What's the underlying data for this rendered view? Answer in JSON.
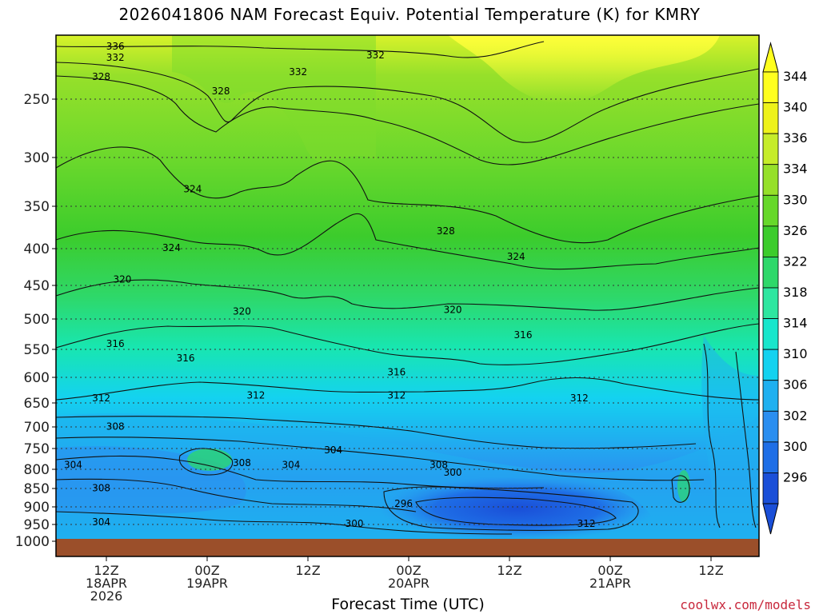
{
  "chart_data": {
    "type": "heatmap",
    "title": "2026041806 NAM Forecast Equiv. Potential Temperature (K) for KMRY",
    "xlabel": "Forecast Time (UTC)",
    "ylabel": "",
    "y_ticks": [
      250,
      300,
      350,
      400,
      450,
      500,
      550,
      600,
      650,
      700,
      750,
      800,
      850,
      900,
      950,
      1000
    ],
    "x_ticks": [
      {
        "l1": "12Z",
        "l2": "18APR",
        "l3": "2026"
      },
      {
        "l1": "00Z",
        "l2": "19APR",
        "l3": ""
      },
      {
        "l1": "12Z",
        "l2": "",
        "l3": ""
      },
      {
        "l1": "00Z",
        "l2": "20APR",
        "l3": ""
      },
      {
        "l1": "12Z",
        "l2": "",
        "l3": ""
      },
      {
        "l1": "00Z",
        "l2": "21APR",
        "l3": ""
      },
      {
        "l1": "12Z",
        "l2": "",
        "l3": ""
      }
    ],
    "colorbar_labels": [
      296,
      300,
      302,
      306,
      310,
      314,
      318,
      322,
      326,
      330,
      334,
      336,
      340,
      344
    ],
    "colorbar_colors": [
      "#1a4fd8",
      "#1e6ee6",
      "#2b8ef0",
      "#1fb0f0",
      "#14d2f0",
      "#18e6cc",
      "#2ee6a0",
      "#2ed86a",
      "#3ccc2c",
      "#66d82a",
      "#96e02a",
      "#c6ec2a",
      "#eef21a",
      "#ffff1e"
    ],
    "contour_labels": [
      {
        "text": "336",
        "x": 6,
        "y": 205
      },
      {
        "text": "332",
        "x": 6,
        "y": 215
      },
      {
        "text": "332",
        "x": 43,
        "y": 213
      },
      {
        "text": "332",
        "x": 32,
        "y": 228
      },
      {
        "text": "328",
        "x": 4,
        "y": 232
      },
      {
        "text": "328",
        "x": 21,
        "y": 245
      },
      {
        "text": "328",
        "x": 53,
        "y": 382
      },
      {
        "text": "324",
        "x": 17,
        "y": 335
      },
      {
        "text": "324",
        "x": 14,
        "y": 402
      },
      {
        "text": "324",
        "x": 63,
        "y": 414
      },
      {
        "text": "320",
        "x": 7,
        "y": 445
      },
      {
        "text": "320",
        "x": 24,
        "y": 492
      },
      {
        "text": "320",
        "x": 54,
        "y": 490
      },
      {
        "text": "316",
        "x": 6,
        "y": 545
      },
      {
        "text": "316",
        "x": 16,
        "y": 570
      },
      {
        "text": "316",
        "x": 46,
        "y": 595
      },
      {
        "text": "316",
        "x": 64,
        "y": 530
      },
      {
        "text": "312",
        "x": 4,
        "y": 645
      },
      {
        "text": "312",
        "x": 26,
        "y": 640
      },
      {
        "text": "312",
        "x": 46,
        "y": 640
      },
      {
        "text": "312",
        "x": 72,
        "y": 645
      },
      {
        "text": "308",
        "x": 6,
        "y": 705
      },
      {
        "text": "308",
        "x": 24,
        "y": 790
      },
      {
        "text": "308",
        "x": 52,
        "y": 795
      },
      {
        "text": "308",
        "x": 4,
        "y": 855
      },
      {
        "text": "304",
        "x": 37,
        "y": 760
      },
      {
        "text": "304",
        "x": 31,
        "y": 795
      },
      {
        "text": "304",
        "x": 0,
        "y": 795
      },
      {
        "text": "304",
        "x": 4,
        "y": 950
      },
      {
        "text": "300",
        "x": 54,
        "y": 815
      },
      {
        "text": "300",
        "x": 40,
        "y": 955
      },
      {
        "text": "296",
        "x": 47,
        "y": 898
      },
      {
        "text": "312",
        "x": 73,
        "y": 955
      }
    ]
  },
  "footer": {
    "credit": "coolwx.com/models"
  }
}
